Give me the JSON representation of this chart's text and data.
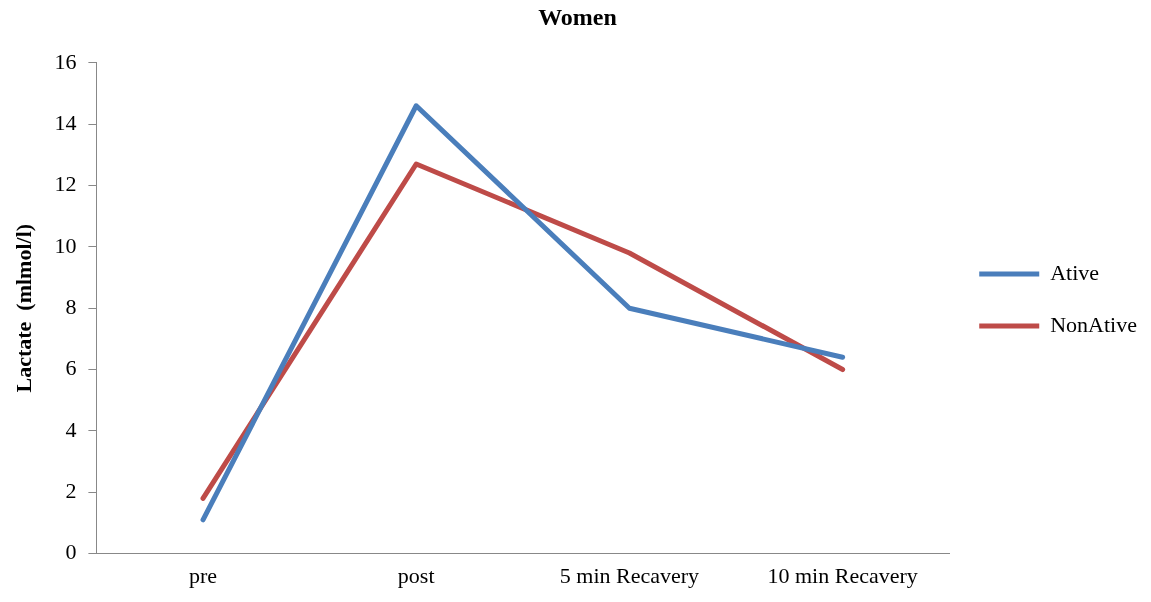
{
  "chart_data": {
    "type": "line",
    "title": "Women",
    "ylabel": "Lactate  (mlmol/l)",
    "categories": [
      "pre",
      "post",
      "5 min Recavery",
      "10 min Recavery"
    ],
    "series": [
      {
        "name": "Ative",
        "color": "#4a7ebb",
        "values": [
          1.1,
          14.6,
          8.0,
          6.4
        ]
      },
      {
        "name": "NonAtive",
        "color": "#be4b48",
        "values": [
          1.8,
          12.7,
          9.8,
          6.0
        ]
      }
    ],
    "ylim": [
      0,
      16
    ],
    "yticks": [
      0,
      2,
      4,
      6,
      8,
      10,
      12,
      14,
      16
    ],
    "grid": false,
    "legend": "right"
  }
}
